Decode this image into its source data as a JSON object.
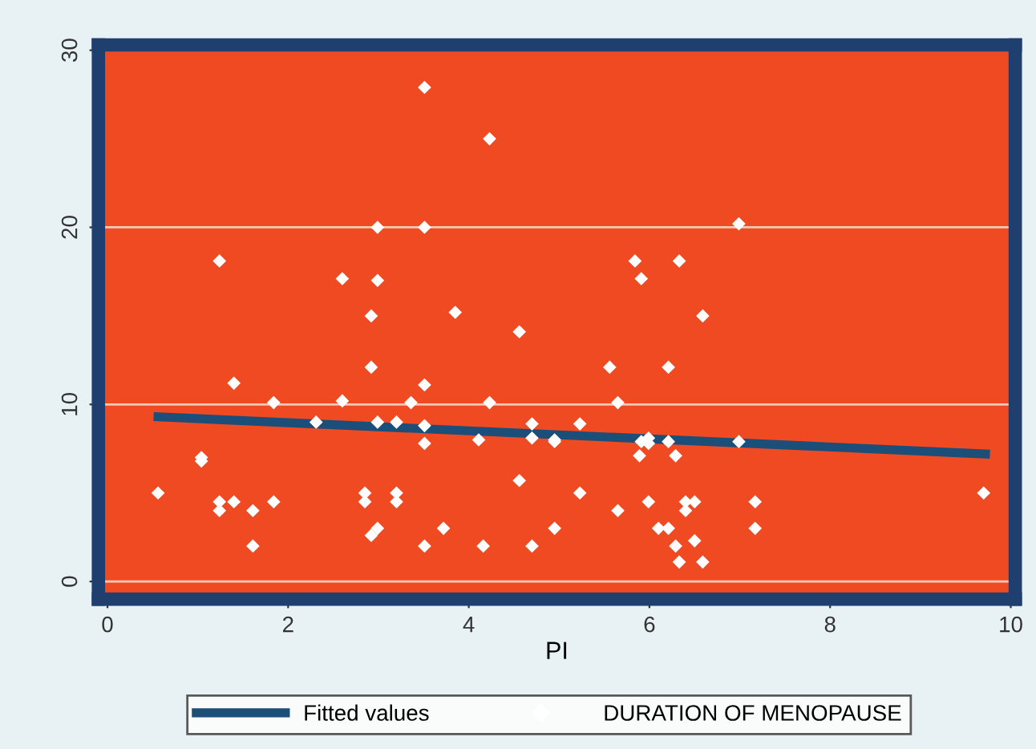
{
  "chart_data": {
    "type": "scatter",
    "xlabel": "PI",
    "xlim": [
      -0.1,
      10.05
    ],
    "ylim": [
      -1,
      30.3
    ],
    "xticks": [
      0,
      2,
      4,
      6,
      8,
      10
    ],
    "yticks": [
      0,
      10,
      20,
      30
    ],
    "grid": "y",
    "legend": "bottom",
    "marker": "diamond",
    "series": [
      {
        "name": "Fitted values",
        "type": "line",
        "color": "#1b4f7a",
        "marker": "none",
        "x": [
          0.56,
          9.72
        ],
        "values": [
          9.3,
          7.2
        ]
      },
      {
        "name": "DURATION OF MENOPAUSE",
        "color": "#ffffff",
        "x": [
          0.56,
          1.04,
          1.04,
          1.24,
          1.24,
          1.24,
          1.4,
          1.4,
          1.61,
          1.61,
          1.84,
          1.84,
          2.31,
          2.6,
          2.6,
          2.92,
          2.92,
          2.99,
          2.99,
          2.99,
          2.85,
          2.85,
          2.99,
          2.92,
          3.2,
          3.2,
          3.2,
          3.36,
          3.51,
          3.51,
          3.51,
          3.51,
          3.51,
          3.51,
          3.72,
          3.85,
          4.11,
          4.16,
          4.23,
          4.23,
          4.56,
          4.56,
          4.7,
          4.7,
          4.7,
          4.95,
          4.95,
          4.95,
          5.23,
          5.23,
          5.56,
          5.65,
          5.65,
          5.84,
          5.89,
          5.91,
          5.91,
          5.99,
          5.99,
          5.99,
          6.1,
          6.21,
          6.21,
          6.21,
          6.29,
          6.29,
          6.33,
          6.33,
          6.4,
          6.4,
          6.5,
          6.5,
          6.59,
          6.59,
          6.99,
          6.99,
          7.17,
          7.17,
          9.7
        ],
        "values": [
          5.0,
          6.8,
          7.0,
          18.1,
          4.5,
          4.0,
          11.2,
          4.5,
          4.0,
          2.0,
          10.1,
          4.5,
          9.0,
          10.2,
          17.1,
          15.0,
          12.1,
          9.0,
          20.0,
          17.0,
          5.0,
          4.5,
          3.0,
          2.6,
          9.0,
          5.0,
          4.5,
          10.1,
          11.1,
          8.8,
          7.8,
          2.0,
          27.9,
          20.0,
          3.0,
          15.2,
          8.0,
          2.0,
          10.1,
          25.0,
          14.1,
          5.7,
          8.9,
          8.1,
          2.0,
          8.0,
          7.9,
          3.0,
          8.9,
          5.0,
          12.1,
          10.1,
          4.0,
          18.1,
          7.1,
          7.9,
          17.1,
          8.1,
          7.8,
          4.5,
          3.0,
          7.9,
          12.1,
          3.0,
          7.1,
          2.0,
          18.1,
          1.1,
          4.5,
          4.0,
          4.5,
          2.3,
          15.0,
          1.1,
          20.2,
          7.9,
          4.5,
          3.0,
          5.0
        ]
      }
    ]
  }
}
